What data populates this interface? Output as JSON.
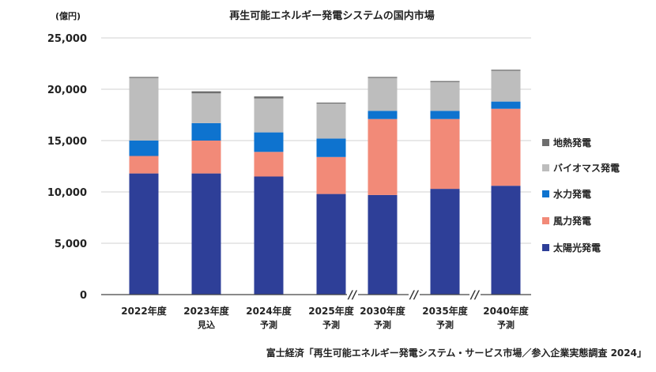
{
  "chart_data": {
    "type": "bar",
    "stacked": true,
    "title": "再生可能エネルギー発電システムの国内市場",
    "unit_label": "(億円)",
    "ylim": [
      0,
      25000
    ],
    "yticks": [
      "0",
      "5,000",
      "10,000",
      "15,000",
      "20,000",
      "25,000"
    ],
    "ytick_values": [
      0,
      5000,
      10000,
      15000,
      20000,
      25000
    ],
    "categories": [
      "2022年度",
      "2023年度",
      "2024年度",
      "2025年度",
      "2030年度",
      "2035年度",
      "2040年度"
    ],
    "subcategories": [
      "",
      "見込",
      "予測",
      "予測",
      "予測",
      "予測",
      "予測"
    ],
    "axis_breaks": [
      "//",
      "//",
      "//"
    ],
    "legend_position": "right",
    "series": [
      {
        "name": "太陽光発電",
        "color": "#2e3f98",
        "values": [
          11800,
          11800,
          11500,
          9800,
          9700,
          10300,
          10600
        ]
      },
      {
        "name": "風力発電",
        "color": "#f28a78",
        "values": [
          1700,
          3200,
          2400,
          3600,
          7400,
          6800,
          7500
        ]
      },
      {
        "name": "水力発電",
        "color": "#0e73cf",
        "values": [
          1500,
          1700,
          1900,
          1800,
          800,
          800,
          700
        ]
      },
      {
        "name": "バイオマス発電",
        "color": "#bdbdbd",
        "values": [
          6100,
          2900,
          3300,
          3400,
          3200,
          2800,
          3000
        ]
      },
      {
        "name": "地熱発電",
        "color": "#6e6e6e",
        "values": [
          100,
          200,
          200,
          100,
          100,
          100,
          100
        ]
      }
    ],
    "source": "富士経済「再生可能エネルギー発電システム・サービス市場／参入企業実態調査 2024」"
  }
}
